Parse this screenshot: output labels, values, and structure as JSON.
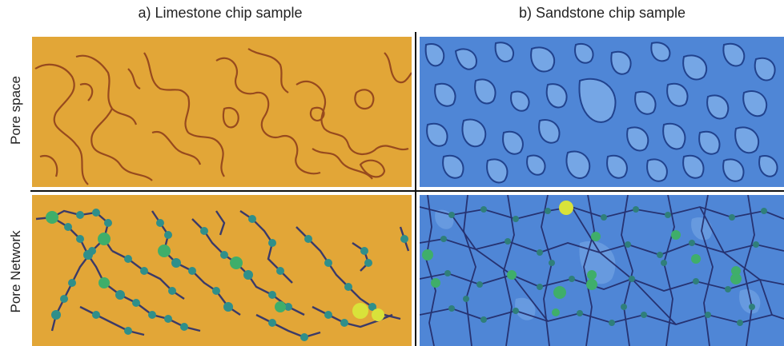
{
  "columns": {
    "a_title": "a) Limestone chip sample",
    "b_title": "b) Sandstone chip sample"
  },
  "rows": {
    "top_label": "Pore space",
    "bottom_label": "Pore Network"
  },
  "colors": {
    "limestone_background": "#e2a637",
    "limestone_pore_edge": "#8a3a1a",
    "sandstone_background": "#4f86d6",
    "sandstone_pore_edge": "#1f3f8a",
    "throat": "#2a2f6e",
    "pore_node_small": "#2f8f8a",
    "pore_node_mid": "#3fae6a",
    "pore_node_large": "#d9e23a"
  }
}
